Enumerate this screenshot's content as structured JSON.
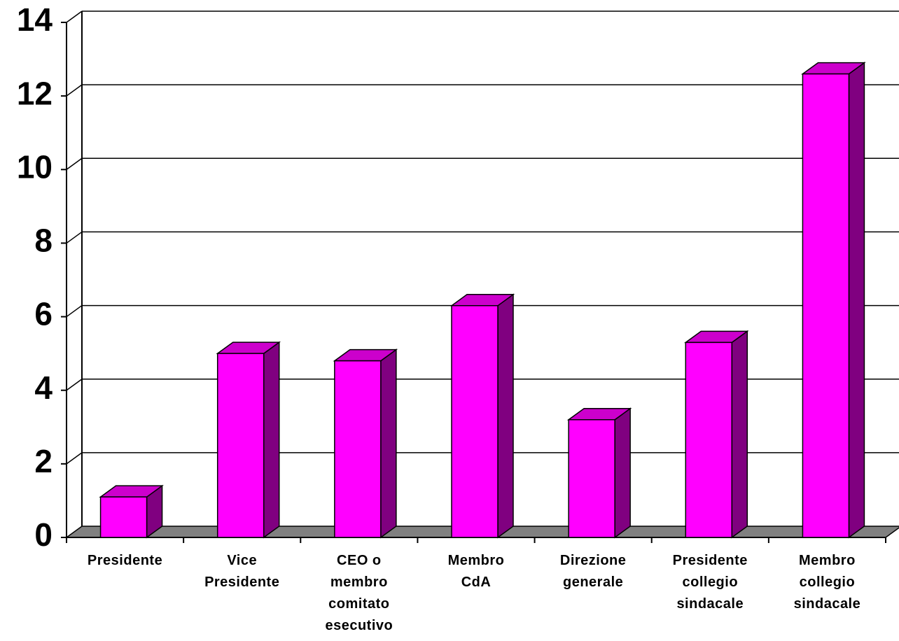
{
  "chart_data": {
    "type": "bar3d",
    "categories": [
      "Presidente",
      "Vice Presidente",
      "CEO o membro comitato esecutivo",
      "Membro CdA",
      "Direzione generale",
      "Presidente collegio sindacale",
      "Membro collegio sindacale"
    ],
    "values": [
      1.1,
      5,
      4.8,
      6.3,
      3.2,
      5.3,
      12.6
    ],
    "color": "#ff00ff",
    "ylim": [
      0,
      14
    ],
    "yticks": [
      0,
      2,
      4,
      6,
      8,
      10,
      12,
      14
    ],
    "grid": true
  }
}
